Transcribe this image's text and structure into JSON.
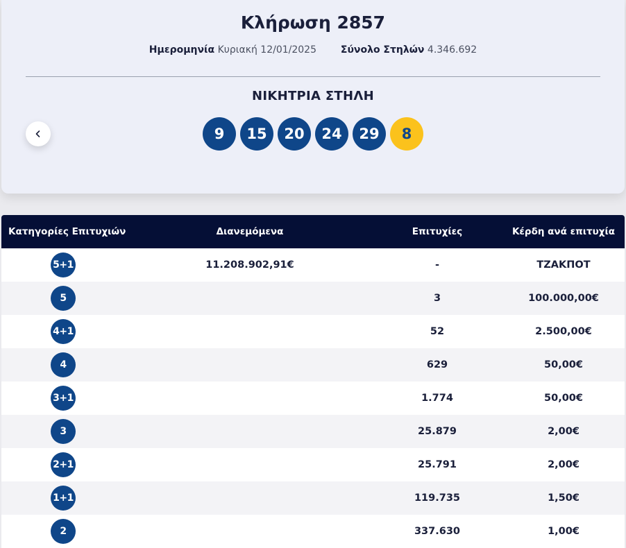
{
  "draw": {
    "title": "Κλήρωση 2857",
    "date_label": "Ημερομηνία",
    "date_value": "Κυριακή 12/01/2025",
    "total_label": "Σύνολο Στηλών",
    "total_value": "4.346.692",
    "winning_label": "ΝΙΚΗΤΡΙΑ ΣΤΗΛΗ",
    "numbers": [
      "9",
      "15",
      "20",
      "24",
      "29"
    ],
    "joker": "8"
  },
  "colors": {
    "ball_blue": "#0f4689",
    "joker_yellow": "#fbc21c",
    "header_navy": "#050f36"
  },
  "icons": {
    "prev": "chevron-left-icon"
  },
  "table": {
    "headers": {
      "category": "Κατηγορίες Επιτυχιών",
      "distributed": "Διανεμόμενα",
      "winners": "Επιτυχίες",
      "prize": "Κέρδη ανά επιτυχία"
    },
    "rows": [
      {
        "category": "5+1",
        "distributed": "11.208.902,91€",
        "winners": "-",
        "prize": "ΤΖΑΚΠΟΤ"
      },
      {
        "category": "5",
        "distributed": "",
        "winners": "3",
        "prize": "100.000,00€"
      },
      {
        "category": "4+1",
        "distributed": "",
        "winners": "52",
        "prize": "2.500,00€"
      },
      {
        "category": "4",
        "distributed": "",
        "winners": "629",
        "prize": "50,00€"
      },
      {
        "category": "3+1",
        "distributed": "",
        "winners": "1.774",
        "prize": "50,00€"
      },
      {
        "category": "3",
        "distributed": "",
        "winners": "25.879",
        "prize": "2,00€"
      },
      {
        "category": "2+1",
        "distributed": "",
        "winners": "25.791",
        "prize": "2,00€"
      },
      {
        "category": "1+1",
        "distributed": "",
        "winners": "119.735",
        "prize": "1,50€"
      },
      {
        "category": "2",
        "distributed": "",
        "winners": "337.630",
        "prize": "1,00€"
      }
    ]
  }
}
